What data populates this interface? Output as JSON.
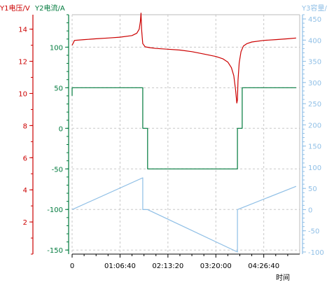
{
  "chart_data": {
    "type": "line",
    "xlabel": "时间",
    "x_ticks": [
      "0",
      "01:06:40",
      "02:13:20",
      "03:20:00",
      "04:26:40"
    ],
    "x_tick_seconds": [
      0,
      4000,
      8000,
      12000,
      16000
    ],
    "xlim_seconds": [
      0,
      19000
    ],
    "grid": true,
    "axes": {
      "y1": {
        "label": "Y1电压/V",
        "color": "#cc0000",
        "ticks": [
          2,
          4,
          6,
          8,
          10,
          12,
          14
        ],
        "ylim": [
          0,
          14.9
        ]
      },
      "y2": {
        "label": "Y2电流/A",
        "color": "#007a3d",
        "ticks": [
          -150,
          -100,
          -50,
          0,
          50,
          100
        ],
        "ylim": [
          -155,
          140
        ]
      },
      "y3": {
        "label": "Y3容量/",
        "color": "#8fbfe6",
        "ticks": [
          -100,
          -50,
          0,
          50,
          100,
          150,
          200,
          250,
          300,
          350,
          400,
          450
        ],
        "ylim": [
          -105,
          460
        ]
      }
    },
    "series": [
      {
        "axis": "y1",
        "color": "#cc0000",
        "x": [
          0,
          200,
          1000,
          2000,
          3000,
          4000,
          5000,
          5400,
          5600,
          5700,
          5750,
          5800,
          5850,
          5900,
          6100,
          6500,
          7000,
          8000,
          9000,
          10000,
          11000,
          12000,
          12600,
          13000,
          13300,
          13500,
          13650,
          13750,
          13800,
          13850,
          13950,
          14100,
          14300,
          14600,
          15000,
          16000,
          17000,
          18000,
          18700
        ],
        "values": [
          13.0,
          13.3,
          13.35,
          13.4,
          13.45,
          13.5,
          13.6,
          13.75,
          14.0,
          14.5,
          15.0,
          14.0,
          13.5,
          13.1,
          12.9,
          12.85,
          12.8,
          12.75,
          12.7,
          12.6,
          12.45,
          12.3,
          12.15,
          11.95,
          11.6,
          11.1,
          10.2,
          9.4,
          9.6,
          10.8,
          11.9,
          12.6,
          12.95,
          13.1,
          13.2,
          13.3,
          13.35,
          13.4,
          13.45
        ]
      },
      {
        "axis": "y2",
        "color": "#007a3d",
        "x": [
          0,
          0.01,
          5900,
          5901,
          6300,
          6301,
          13800,
          13801,
          14200,
          14201,
          18700
        ],
        "values": [
          40,
          50,
          50,
          0,
          0,
          -50,
          -50,
          0,
          0,
          50,
          50
        ]
      },
      {
        "axis": "y3",
        "color": "#8fbfe6",
        "x": [
          0,
          5900,
          5901,
          6300,
          13800,
          13801,
          18700
        ],
        "values": [
          0,
          75,
          0,
          0,
          -100,
          0,
          55
        ]
      }
    ]
  }
}
